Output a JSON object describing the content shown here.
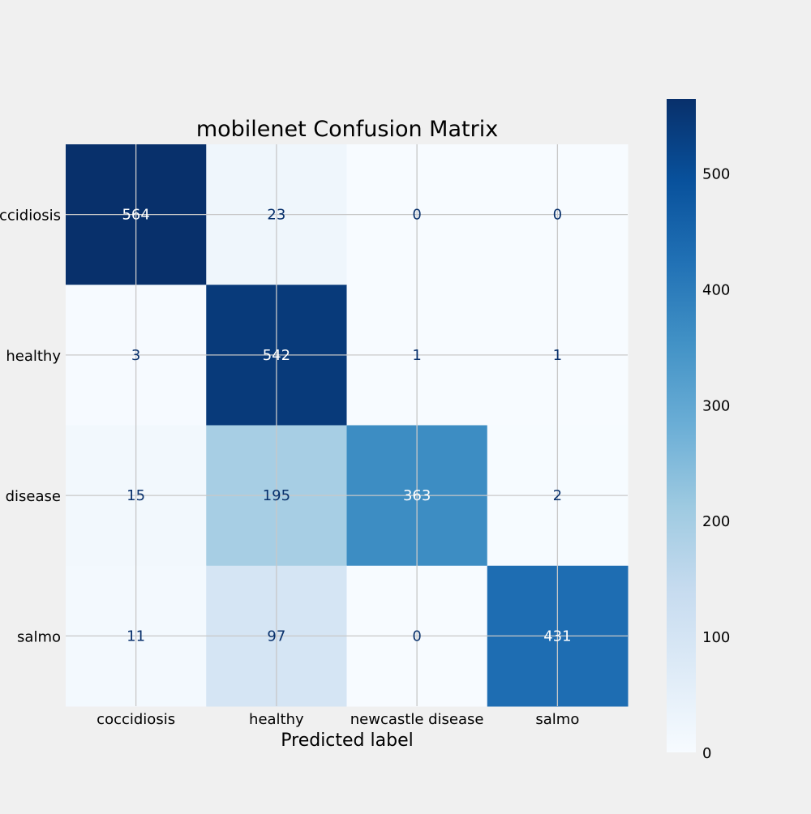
{
  "chart_data": {
    "type": "heatmap",
    "title": "mobilenet Confusion Matrix",
    "xlabel": "Predicted label",
    "ylabel": "",
    "x_categories": [
      "coccidiosis",
      "healthy",
      "newcastle disease",
      "salmo"
    ],
    "y_categories": [
      "coccidiosis",
      "healthy",
      "newcastle disease",
      "salmo"
    ],
    "matrix": [
      [
        564,
        23,
        0,
        0
      ],
      [
        3,
        542,
        1,
        1
      ],
      [
        15,
        195,
        363,
        2
      ],
      [
        11,
        97,
        0,
        431
      ]
    ],
    "colormap": "Blues",
    "vmin": 0,
    "vmax": 564,
    "colorbar_ticks": [
      0,
      100,
      200,
      300,
      400,
      500
    ],
    "grid": true,
    "colors": {
      "background": "#f0f0f0",
      "grid": "#c8c8c8",
      "text_dark": "#08306b",
      "text_light": "#ffffff",
      "axis_text": "#000000"
    }
  }
}
